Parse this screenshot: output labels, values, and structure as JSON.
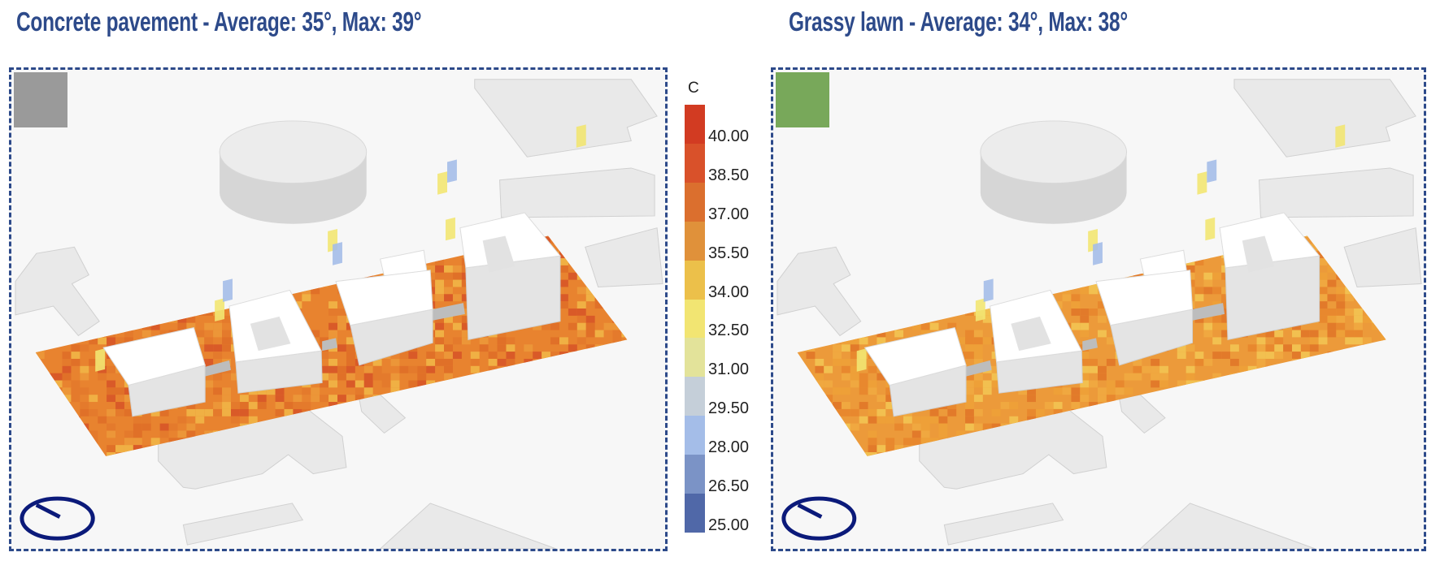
{
  "panels": [
    {
      "title": "Concrete pavement - Average: 35°, Max: 39°",
      "swatch_color": "#9a9a9a",
      "heat_palette": [
        "#e8832f",
        "#e07028",
        "#ec9638",
        "#d95a28",
        "#e47a2c",
        "#f0b044"
      ]
    },
    {
      "title": "Grassy lawn - Average: 34°, Max: 38°",
      "swatch_color": "#78a85a",
      "heat_palette": [
        "#ec9a3a",
        "#e8882e",
        "#f0a840",
        "#e27a2a",
        "#eea038",
        "#f2c050"
      ]
    }
  ],
  "legend": {
    "unit": "C",
    "colors": [
      "#d23b22",
      "#d9512a",
      "#db6f2e",
      "#e0913a",
      "#ecc04a",
      "#f2e572",
      "#e3e39a",
      "#c5cfd9",
      "#a4bde8",
      "#7b93c6",
      "#5068a8"
    ],
    "labels": [
      "40.00",
      "38.50",
      "37.00",
      "35.50",
      "34.00",
      "32.50",
      "31.00",
      "29.50",
      "28.00",
      "26.50",
      "25.00"
    ]
  },
  "frame_color": "#2d4a8a",
  "compass_color": "#0b1a7a"
}
